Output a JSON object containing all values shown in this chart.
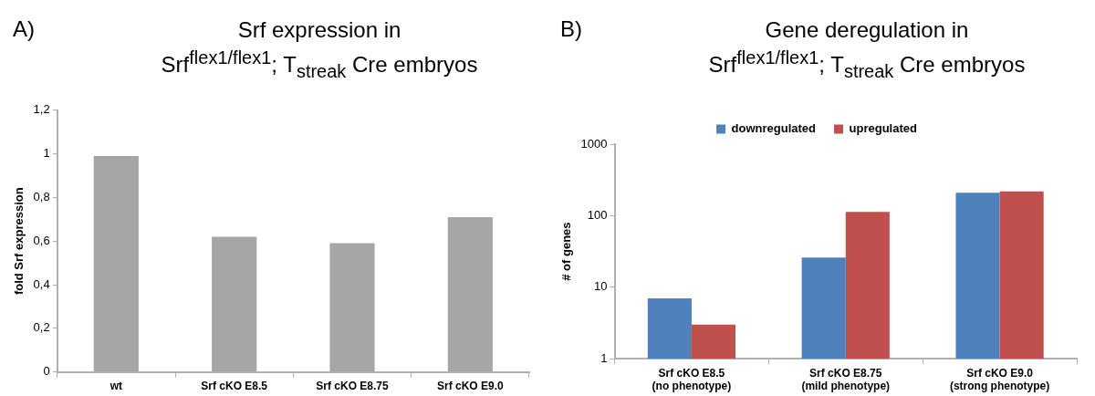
{
  "chart_data": [
    {
      "type": "bar",
      "title": "Srf expression in",
      "subtitle": "Srf$^{flex1/flex1}$; T$_{streak}$ Cre embryos",
      "ylabel": "fold Srf expression",
      "annotations": [
        "A)"
      ],
      "categories": [
        "wt",
        "Srf cKO E8.5",
        "Srf cKO E8.75",
        "Srf cKO E9.0"
      ],
      "values": [
        0.99,
        0.62,
        0.59,
        0.71
      ],
      "color": "#a6a6a6",
      "ylim": [
        0,
        1.2
      ],
      "yticks": [
        0,
        {
          "value": 0.2,
          "label": "0,2"
        },
        {
          "value": 0.4,
          "label": "0,4"
        },
        {
          "value": 0.6,
          "label": "0,6"
        },
        {
          "value": 0.8,
          "label": "0,8"
        },
        1,
        {
          "value": 1.2,
          "label": "1,2"
        }
      ],
      "grid": false,
      "legend": false
    },
    {
      "type": "bar",
      "title": "Gene deregulation in",
      "subtitle": "Srf$^{flex1/flex1}$; T$_{streak}$ Cre embryos",
      "ylabel": "# of genes",
      "annotations": [
        "B)"
      ],
      "categories": [
        "Srf cKO E8.5\n(no phenotype)",
        "Srf cKO E8.75\n(mild phenotype)",
        "Srf cKO E9.0\n(strong phenotype)"
      ],
      "series": [
        {
          "name": "downregulated",
          "color": "#4f81bd",
          "values": [
            7,
            26,
            210
          ]
        },
        {
          "name": "upregulated",
          "color": "#c0504d",
          "values": [
            3,
            113,
            218
          ]
        }
      ],
      "log": "y",
      "ylim": [
        1,
        1000
      ],
      "yticks": [
        1,
        10,
        100,
        1000
      ],
      "grid": false,
      "legend": "top"
    }
  ]
}
